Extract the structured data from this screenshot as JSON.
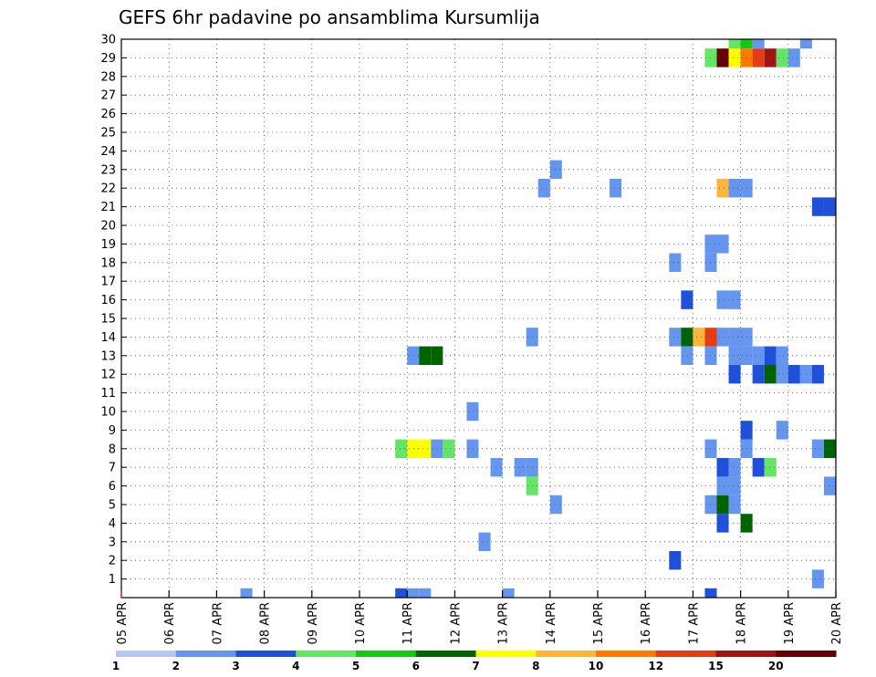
{
  "chart_data": {
    "type": "heatmap",
    "title": "GEFS 6hr padavine po ansamblima Kursumlija",
    "xlabel": "",
    "ylabel": "",
    "x_ticks": [
      "05 APR",
      "06 APR",
      "07 APR",
      "08 APR",
      "09 APR",
      "10 APR",
      "11 APR",
      "12 APR",
      "13 APR",
      "14 APR",
      "15 APR",
      "16 APR",
      "17 APR",
      "18 APR",
      "19 APR",
      "20 APR"
    ],
    "y_ticks": [
      1,
      2,
      3,
      4,
      5,
      6,
      7,
      8,
      9,
      10,
      11,
      12,
      13,
      14,
      15,
      16,
      17,
      18,
      19,
      20,
      21,
      22,
      23,
      24,
      25,
      26,
      27,
      28,
      29,
      30
    ],
    "ylim": [
      0,
      30
    ],
    "x_range_days": [
      0,
      15
    ],
    "grid": true,
    "colorbar_labels": [
      "1",
      "2",
      "3",
      "4",
      "5",
      "6",
      "7",
      "8",
      "10",
      "12",
      "15",
      "20"
    ],
    "colorbar_colors": [
      "#b4c8f5",
      "#6496f0",
      "#1e50dc",
      "#64e664",
      "#14c814",
      "#006400",
      "#ffff00",
      "#ffb43c",
      "#ff7800",
      "#e63c14",
      "#a01414",
      "#640000"
    ],
    "cells": [
      {
        "m": 30,
        "t": [
          [
            12.75,
            3
          ],
          [
            13,
            4
          ],
          [
            13.25,
            1
          ]
        ]
      },
      {
        "m": 30,
        "t": [
          [
            14.25,
            1
          ]
        ]
      },
      {
        "m": 30,
        "t": [
          [
            15.0,
            3
          ]
        ]
      },
      {
        "m": 29,
        "t": [
          [
            12.25,
            3
          ],
          [
            12.5,
            11
          ],
          [
            12.75,
            6
          ],
          [
            13,
            8
          ],
          [
            13.25,
            9
          ],
          [
            13.5,
            10
          ],
          [
            13.75,
            3
          ],
          [
            14,
            1
          ]
        ]
      },
      {
        "m": 23,
        "t": [
          [
            9.0,
            1
          ]
        ]
      },
      {
        "m": 22,
        "t": [
          [
            8.75,
            1
          ],
          [
            10.25,
            1
          ],
          [
            12.5,
            7
          ],
          [
            12.75,
            1
          ],
          [
            13,
            1
          ]
        ]
      },
      {
        "m": 21,
        "t": [
          [
            14.5,
            2
          ],
          [
            14.75,
            2
          ]
        ]
      },
      {
        "m": 19,
        "t": [
          [
            12.25,
            1
          ],
          [
            12.5,
            1
          ]
        ]
      },
      {
        "m": 18,
        "t": [
          [
            11.5,
            1
          ],
          [
            12.25,
            1
          ]
        ]
      },
      {
        "m": 16,
        "t": [
          [
            11.75,
            2
          ],
          [
            12.5,
            1
          ],
          [
            12.75,
            1
          ]
        ]
      },
      {
        "m": 14,
        "t": [
          [
            8.5,
            1
          ],
          [
            11.5,
            1
          ],
          [
            11.75,
            5
          ],
          [
            12,
            7
          ],
          [
            12.25,
            9
          ],
          [
            12.5,
            1
          ],
          [
            12.75,
            1
          ],
          [
            13,
            1
          ]
        ]
      },
      {
        "m": 13,
        "t": [
          [
            6.0,
            1
          ],
          [
            6.25,
            5
          ],
          [
            6.5,
            5
          ],
          [
            11.75,
            1
          ],
          [
            12.25,
            1
          ],
          [
            12.75,
            1
          ],
          [
            13,
            1
          ],
          [
            13.25,
            1
          ],
          [
            13.5,
            2
          ],
          [
            13.75,
            1
          ]
        ]
      },
      {
        "m": 12,
        "t": [
          [
            12.75,
            2
          ],
          [
            13.25,
            2
          ],
          [
            13.5,
            5
          ],
          [
            13.75,
            1
          ],
          [
            14,
            2
          ],
          [
            14.25,
            1
          ],
          [
            14.5,
            2
          ]
        ]
      },
      {
        "m": 10,
        "t": [
          [
            7.25,
            1
          ]
        ]
      },
      {
        "m": 9,
        "t": [
          [
            13,
            2
          ],
          [
            13.75,
            1
          ]
        ]
      },
      {
        "m": 8,
        "t": [
          [
            5.75,
            3
          ],
          [
            6,
            6
          ],
          [
            6.25,
            6
          ],
          [
            6.5,
            1
          ],
          [
            6.75,
            3
          ],
          [
            7.25,
            1
          ],
          [
            12.25,
            1
          ],
          [
            13,
            1
          ],
          [
            14.5,
            1
          ],
          [
            14.75,
            5
          ]
        ]
      },
      {
        "m": 7,
        "t": [
          [
            7.75,
            1
          ],
          [
            8.25,
            1
          ],
          [
            8.5,
            1
          ],
          [
            12.5,
            2
          ],
          [
            12.75,
            1
          ],
          [
            13.25,
            2
          ],
          [
            13.5,
            3
          ]
        ]
      },
      {
        "m": 6,
        "t": [
          [
            8.5,
            3
          ],
          [
            12.5,
            1
          ],
          [
            12.75,
            1
          ],
          [
            14.75,
            1
          ]
        ]
      },
      {
        "m": 5,
        "t": [
          [
            9.0,
            1
          ],
          [
            12.25,
            1
          ],
          [
            12.5,
            5
          ],
          [
            12.75,
            1
          ]
        ]
      },
      {
        "m": 4,
        "t": [
          [
            12.5,
            2
          ],
          [
            13,
            5
          ]
        ]
      },
      {
        "m": 3,
        "t": [
          [
            7.5,
            1
          ]
        ]
      },
      {
        "m": 2,
        "t": [
          [
            11.5,
            2
          ]
        ]
      },
      {
        "m": 1,
        "t": [
          [
            14.5,
            1
          ]
        ]
      },
      {
        "m": 0,
        "t": [
          [
            2.5,
            1
          ],
          [
            5.75,
            2
          ],
          [
            6,
            1
          ],
          [
            6.25,
            1
          ],
          [
            8,
            1
          ],
          [
            12.25,
            2
          ]
        ]
      }
    ]
  }
}
